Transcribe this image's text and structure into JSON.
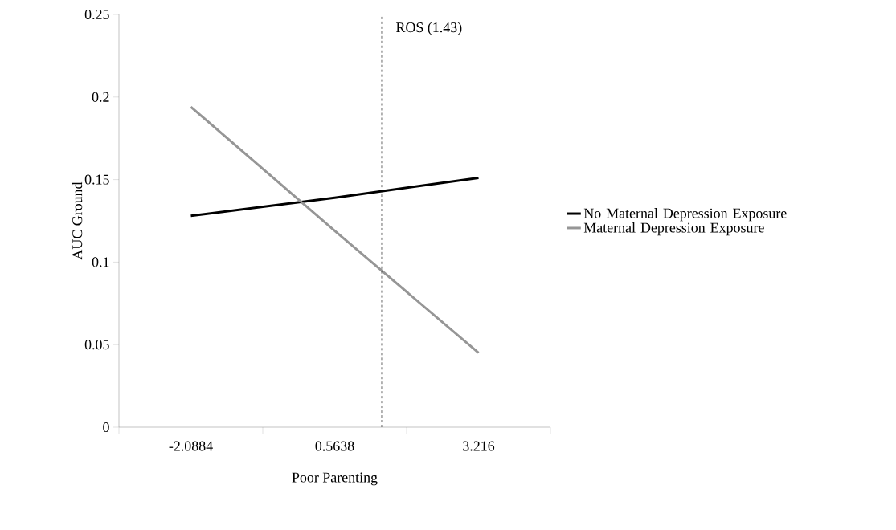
{
  "chart_data": {
    "type": "line",
    "xlabel": "Poor Parenting",
    "ylabel": "AUC Ground",
    "x": [
      -2.0884,
      0.5638,
      3.216
    ],
    "series": [
      {
        "name": "No Maternal Depression Exposure",
        "color": "#000000",
        "values": [
          0.128,
          0.139,
          0.151
        ]
      },
      {
        "name": "Maternal Depression Exposure",
        "color": "#969696",
        "values": [
          0.194,
          0.119,
          0.045
        ]
      }
    ],
    "xlim": [
      -3.4145,
      4.5421
    ],
    "xticks": [
      {
        "value": -3.4145,
        "label": null
      },
      -2.0884,
      {
        "value": -0.7623,
        "label": null
      },
      0.5638,
      {
        "value": 1.8899,
        "label": null
      },
      3.216,
      {
        "value": 4.5421,
        "label": null
      }
    ],
    "ylim": [
      0,
      0.25
    ],
    "yticks": [
      0,
      0.05,
      0.1,
      0.15,
      0.2,
      0.25
    ],
    "ref_lines": [
      {
        "axis": "x",
        "value": 1.43,
        "label": "ROS  (1.43)",
        "color": "#000000",
        "line_style": "dashed"
      }
    ],
    "grid": false,
    "legend": "right",
    "marker": "none",
    "line_style": "solid"
  }
}
